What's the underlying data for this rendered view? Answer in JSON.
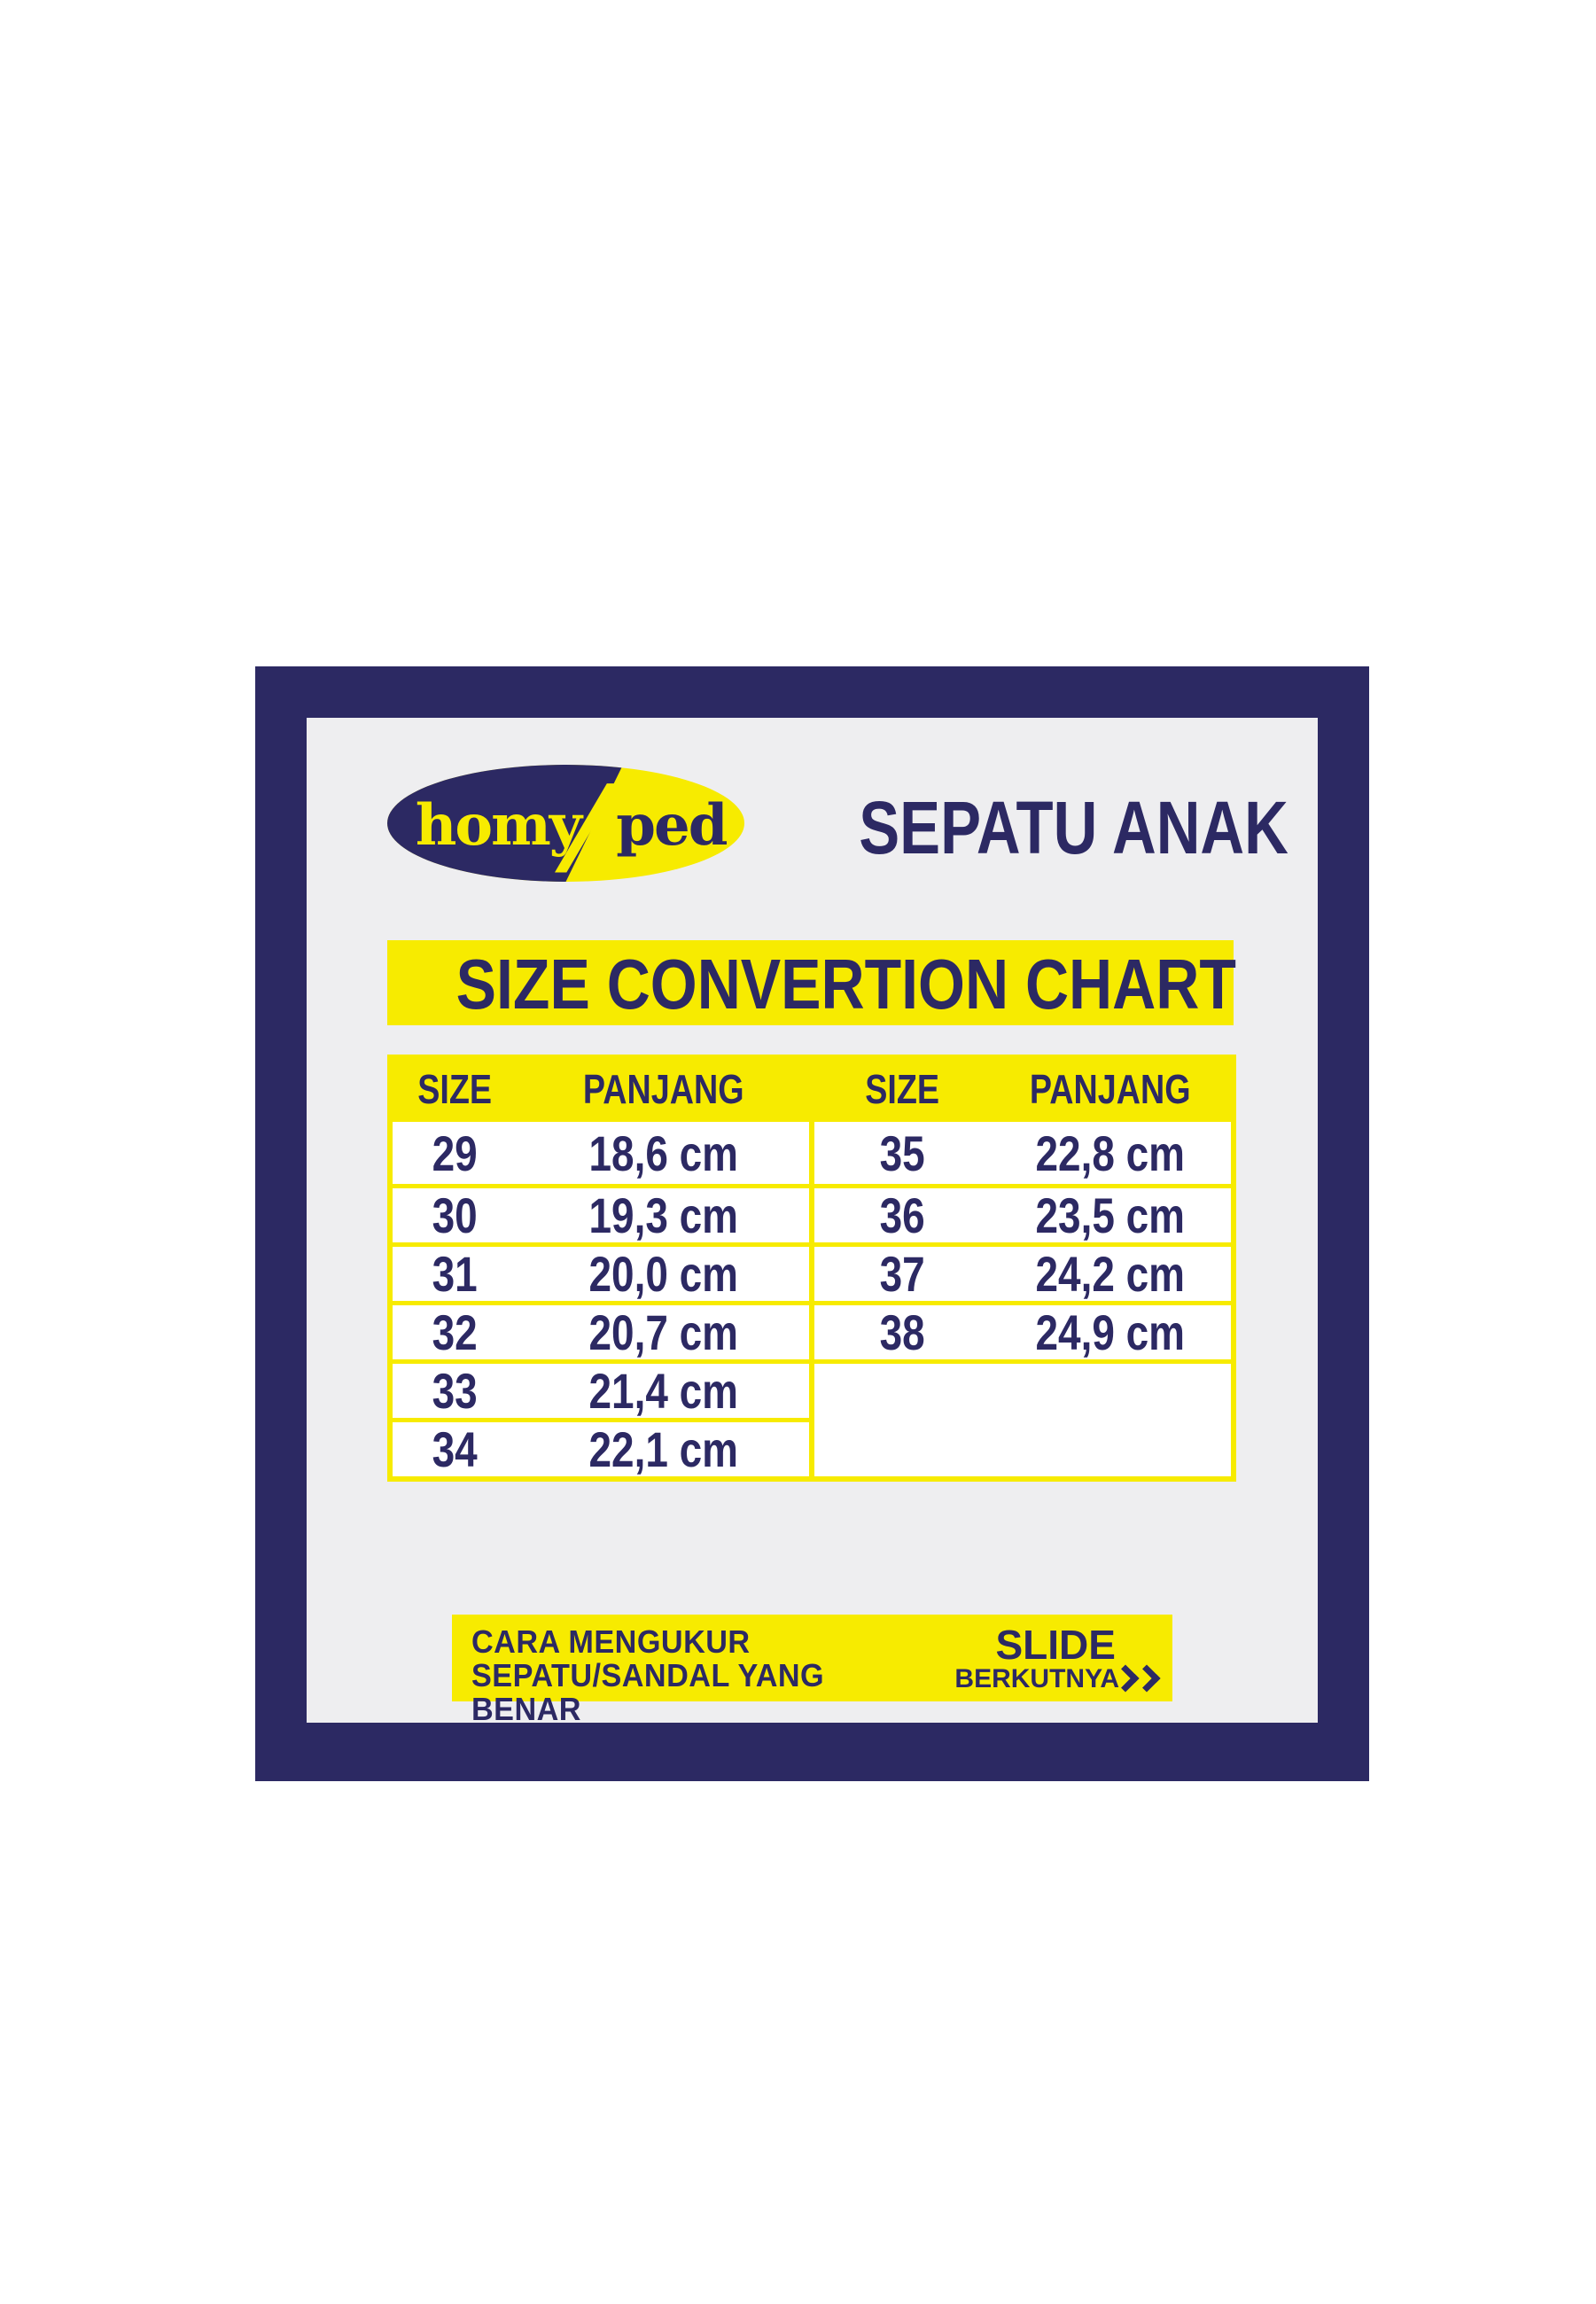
{
  "colors": {
    "navy": "#2c2963",
    "yellow": "#f7eb00",
    "panel_bg": "#eeeef0",
    "cell_bg": "#ffffff"
  },
  "logo": {
    "left_text": "homy",
    "right_text": "ped"
  },
  "header": {
    "title": "SEPATU ANAK"
  },
  "banner": {
    "title": "SIZE CONVERTION CHART"
  },
  "table": {
    "headers": {
      "left_size": "SIZE",
      "left_panjang": "PANJANG",
      "right_size": "SIZE",
      "right_panjang": "PANJANG"
    },
    "left_rows": [
      {
        "size": "29",
        "panjang": "18,6 cm"
      },
      {
        "size": "30",
        "panjang": "19,3 cm"
      },
      {
        "size": "31",
        "panjang": "20,0 cm"
      },
      {
        "size": "32",
        "panjang": "20,7 cm"
      },
      {
        "size": "33",
        "panjang": "21,4 cm"
      },
      {
        "size": "34",
        "panjang": "22,1 cm"
      }
    ],
    "right_rows": [
      {
        "size": "35",
        "panjang": "22,8 cm"
      },
      {
        "size": "36",
        "panjang": "23,5 cm"
      },
      {
        "size": "37",
        "panjang": "24,2 cm"
      },
      {
        "size": "38",
        "panjang": "24,9 cm"
      }
    ]
  },
  "footer": {
    "line1": "CARA MENGUKUR",
    "line2": "SEPATU/SANDAL YANG BENAR",
    "slide": "SLIDE",
    "next_label": "BERKUTNYA"
  },
  "chart_data": {
    "type": "table",
    "title": "SIZE CONVERTION CHART",
    "columns": [
      "SIZE",
      "PANJANG"
    ],
    "rows": [
      [
        "29",
        "18,6 cm"
      ],
      [
        "30",
        "19,3 cm"
      ],
      [
        "31",
        "20,0 cm"
      ],
      [
        "32",
        "20,7 cm"
      ],
      [
        "33",
        "21,4 cm"
      ],
      [
        "34",
        "22,1 cm"
      ],
      [
        "35",
        "22,8 cm"
      ],
      [
        "36",
        "23,5 cm"
      ],
      [
        "37",
        "24,2 cm"
      ],
      [
        "38",
        "24,9 cm"
      ]
    ]
  }
}
